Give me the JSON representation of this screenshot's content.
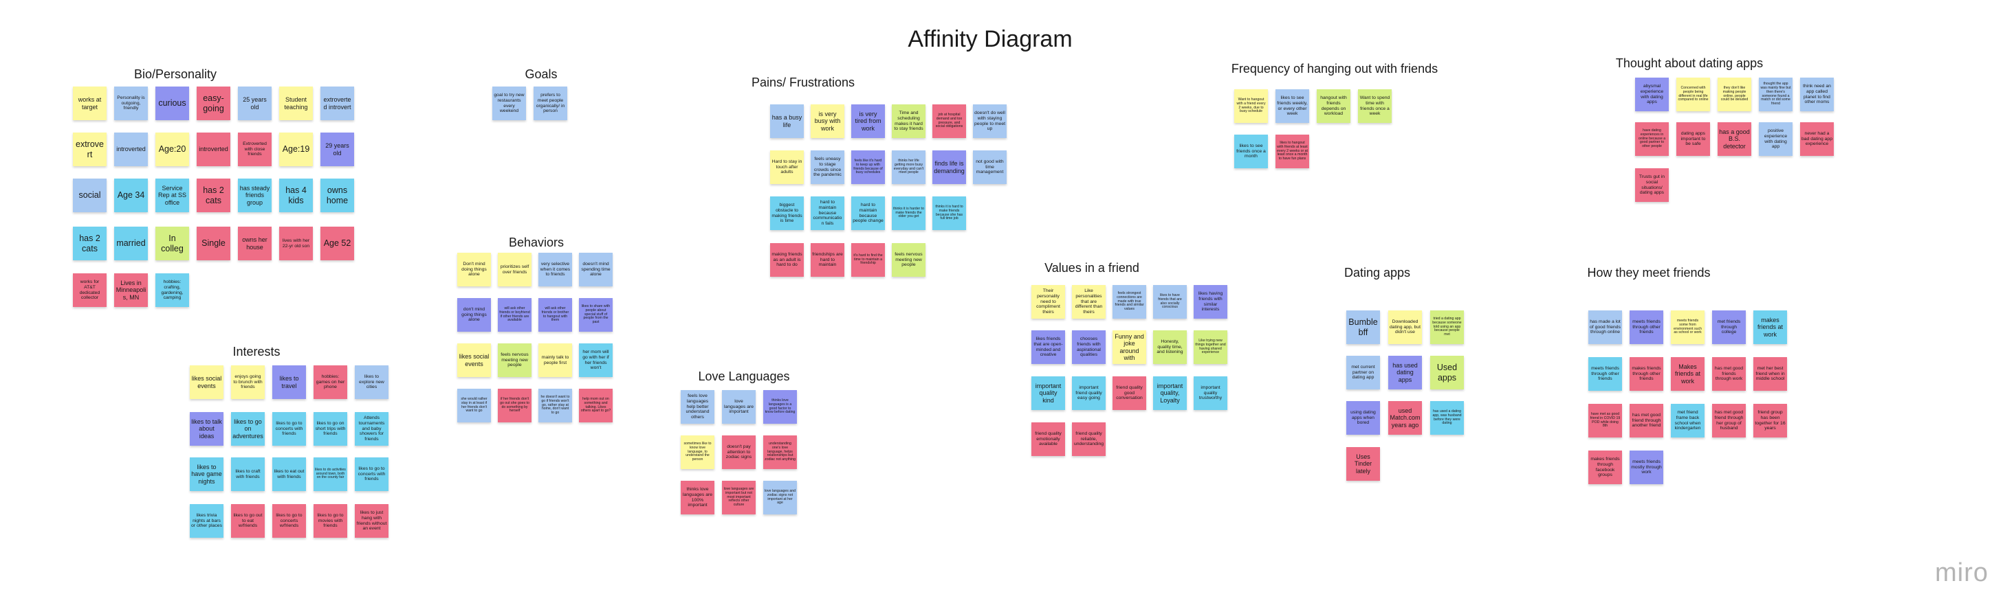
{
  "title": "Affinity Diagram",
  "logo": "miro",
  "colors": {
    "yellow": "#fdf89d",
    "blue": "#a7c8f1",
    "light_blue": "#6fd1ef",
    "violet": "#8f93f0",
    "red": "#ee6d86",
    "green": "#d4ef83"
  },
  "clusters": [
    {
      "id": "bio",
      "title": "Bio/Personality",
      "notes": [
        {
          "t": "works at target",
          "c": "y"
        },
        {
          "t": "Personality is outgoing, friendly",
          "c": "b"
        },
        {
          "t": "curious",
          "c": "v"
        },
        {
          "t": "easy-going",
          "c": "r"
        },
        {
          "t": "25 years old",
          "c": "b"
        },
        {
          "t": "Student teaching",
          "c": "y"
        },
        {
          "t": "extroverted introvert",
          "c": "b"
        },
        {
          "t": "extrovert",
          "c": "y"
        },
        {
          "t": "introverted",
          "c": "b"
        },
        {
          "t": "Age:20",
          "c": "y"
        },
        {
          "t": "introverted",
          "c": "r"
        },
        {
          "t": "Extroverted with close friends",
          "c": "r"
        },
        {
          "t": "Age:19",
          "c": "y"
        },
        {
          "t": "29 years old",
          "c": "v"
        },
        {
          "t": "social",
          "c": "b"
        },
        {
          "t": "Age 34",
          "c": "lb"
        },
        {
          "t": "Service Rep at SS office",
          "c": "lb"
        },
        {
          "t": "has 2 cats",
          "c": "r"
        },
        {
          "t": "has steady friends group",
          "c": "lb"
        },
        {
          "t": "has 4 kids",
          "c": "lb"
        },
        {
          "t": "owns home",
          "c": "lb"
        },
        {
          "t": "has 2 cats",
          "c": "lb"
        },
        {
          "t": "married",
          "c": "lb"
        },
        {
          "t": "In colleg",
          "c": "g"
        },
        {
          "t": "Single",
          "c": "r"
        },
        {
          "t": "owns her house",
          "c": "r"
        },
        {
          "t": "lives with her 22-yr old son",
          "c": "r"
        },
        {
          "t": "Age 52",
          "c": "r"
        },
        {
          "t": "works for AT&T dedicated collector",
          "c": "r"
        },
        {
          "t": "Lives in Minneapolis, MN",
          "c": "r"
        },
        {
          "t": "hobbies: crafting, gardening, camping",
          "c": "lb"
        }
      ]
    },
    {
      "id": "goals",
      "title": "Goals",
      "notes": [
        {
          "t": "goal to try new restaurants every weekend",
          "c": "b"
        },
        {
          "t": "prefers to meet people organically/ in person",
          "c": "b"
        }
      ]
    },
    {
      "id": "interests",
      "title": "Interests",
      "notes": [
        {
          "t": "likes social events",
          "c": "y"
        },
        {
          "t": "enjoys going to brunch with friends",
          "c": "y"
        },
        {
          "t": "likes to travel",
          "c": "v"
        },
        {
          "t": "hobbies: games on her phone",
          "c": "r"
        },
        {
          "t": "likes to explore new cities",
          "c": "b"
        },
        {
          "t": "likes to talk about ideas",
          "c": "v"
        },
        {
          "t": "likes to go on adventures",
          "c": "lb"
        },
        {
          "t": "likes to go to concerts with friends",
          "c": "lb"
        },
        {
          "t": "likes to go on short trips with friends",
          "c": "lb"
        },
        {
          "t": "Attends tournaments and baby showers for friends",
          "c": "lb"
        },
        {
          "t": "likes to have game nights",
          "c": "lb"
        },
        {
          "t": "likes to craft with friends",
          "c": "lb"
        },
        {
          "t": "likes to eat out with friends",
          "c": "lb"
        },
        {
          "t": "likes to do activities around town, both on the county fair",
          "c": "lb"
        },
        {
          "t": "likes to go to concerts with friends",
          "c": "lb"
        },
        {
          "t": "likes trivia nights at bars or other places",
          "c": "lb"
        },
        {
          "t": "likes to go out to eat w/friends",
          "c": "r"
        },
        {
          "t": "likes to go to concerts w/friends",
          "c": "r"
        },
        {
          "t": "likes to go to movies with friends",
          "c": "r"
        },
        {
          "t": "likes to just hang with friends without an event",
          "c": "r"
        }
      ]
    },
    {
      "id": "behaviors",
      "title": "Behaviors",
      "notes": [
        {
          "t": "Don't mind doing things alone",
          "c": "y"
        },
        {
          "t": "prioritizes self over friends",
          "c": "y"
        },
        {
          "t": "very selective when it comes to friends",
          "c": "b"
        },
        {
          "t": "doesn't mind spending time alone",
          "c": "b"
        },
        {
          "t": "don't mind going things alone",
          "c": "v"
        },
        {
          "t": "will ask other friends or boyfriend if other friends are available",
          "c": "v"
        },
        {
          "t": "will ask other friends or brother to hangout with them",
          "c": "v"
        },
        {
          "t": "likes to share with people about special stuff of people from the past",
          "c": "v"
        },
        {
          "t": "likes social events",
          "c": "y"
        },
        {
          "t": "feels nervous meeting new people",
          "c": "g"
        },
        {
          "t": "mainly talk to people first",
          "c": "y"
        },
        {
          "t": "her mom will go with her if her friends won't",
          "c": "lb"
        },
        {
          "t": "she would rather stay in at least if her friends don't want to go",
          "c": "b"
        },
        {
          "t": "if her friends don't go out she goes to do something by herself",
          "c": "r"
        },
        {
          "t": "he doesn't want to go if friends won't go, rather stay at home, don't want to go",
          "c": "b"
        },
        {
          "t": "help mom out on something and talking. Likes others apart to go?",
          "c": "r"
        }
      ]
    },
    {
      "id": "pains",
      "title": "Pains/ Frustrations",
      "notes": [
        {
          "t": "has a busy life",
          "c": "b"
        },
        {
          "t": "is very busy with work",
          "c": "y"
        },
        {
          "t": "is very tired from work",
          "c": "v"
        },
        {
          "t": "Time and scheduling makes it hard to stay friends",
          "c": "g"
        },
        {
          "t": "job at hospital demand and too pressure, and social obligations",
          "c": "r"
        },
        {
          "t": "doesn't do well with staying people to meet up",
          "c": "b"
        },
        {
          "t": "Hard to stay in touch after adults",
          "c": "y"
        },
        {
          "t": "feels uneasy to stage crowds since the pandemic",
          "c": "b"
        },
        {
          "t": "feels like it's hard to keep up with friends because of busy schedules",
          "c": "v"
        },
        {
          "t": "thinks her life getting more busy everyday and can't meet people",
          "c": "b"
        },
        {
          "t": "finds life is demanding",
          "c": "v"
        },
        {
          "t": "not good with time management",
          "c": "b"
        },
        {
          "t": "biggest obstacle to making friends is time",
          "c": "lb"
        },
        {
          "t": "hard to maintain because communication fails",
          "c": "lb"
        },
        {
          "t": "hard to maintain because people change",
          "c": "lb"
        },
        {
          "t": "thinks it is harder to make friends the older you get",
          "c": "lb"
        },
        {
          "t": "thinks it is hard to make friends because she has full time job",
          "c": "lb"
        },
        {
          "t": "making friends as an adult is hard to do",
          "c": "r"
        },
        {
          "t": "friendships are hard to maintain",
          "c": "r"
        },
        {
          "t": "it's hard to find the time to maintain a friendship",
          "c": "r"
        },
        {
          "t": "feels nervous meeting new people",
          "c": "g"
        }
      ]
    },
    {
      "id": "love",
      "title": "Love Languages",
      "notes": [
        {
          "t": "feels love languages help better understand others",
          "c": "b"
        },
        {
          "t": "love languages are important",
          "c": "b"
        },
        {
          "t": "thinks love languages is a good factor to know before dating",
          "c": "v"
        },
        {
          "t": "sometimes like to know love language, to understand the person",
          "c": "y"
        },
        {
          "t": "doesn't pay attention to zodiac signs",
          "c": "r"
        },
        {
          "t": "understanding one's love language, helps relationships but zodiac not anything",
          "c": "r"
        },
        {
          "t": "thinks love languages are 100% important",
          "c": "r"
        },
        {
          "t": "love languages are important but not most important reflects other culture",
          "c": "r"
        },
        {
          "t": "love languages and zodiac signs not important at her age",
          "c": "b"
        }
      ]
    },
    {
      "id": "values",
      "title": "Values in a friend",
      "notes": [
        {
          "t": "Their personality need to compliment theirs",
          "c": "y"
        },
        {
          "t": "Like personalities that are different than theirs",
          "c": "y"
        },
        {
          "t": "feels strongest connections are made with true friends and similar values",
          "c": "b"
        },
        {
          "t": "likes to have friends that are also socially conscious",
          "c": "b"
        },
        {
          "t": "likes having friends with similar interests",
          "c": "v"
        },
        {
          "t": "likes friends that are open-minded and creative",
          "c": "v"
        },
        {
          "t": "chooses friends with aspirational qualities",
          "c": "v"
        },
        {
          "t": "Funny and joke around with",
          "c": "y"
        },
        {
          "t": "Honesty, quality time, and listening",
          "c": "g"
        },
        {
          "t": "Like trying new things together and having shared experience",
          "c": "g"
        },
        {
          "t": "important quality kind",
          "c": "lb"
        },
        {
          "t": "important friend quality easy going",
          "c": "lb"
        },
        {
          "t": "friend quality good conversation",
          "c": "r"
        },
        {
          "t": "important quality, Loyalty",
          "c": "lb"
        },
        {
          "t": "important quality trustworthy",
          "c": "lb"
        },
        {
          "t": "friend quality emotionally available",
          "c": "r"
        },
        {
          "t": "friend quality reliable, understanding",
          "c": "r"
        }
      ]
    },
    {
      "id": "freq",
      "title": "Frequency of hanging out with friends",
      "notes": [
        {
          "t": "Want to hangout with a friend every 2 weeks, due to busy schedule",
          "c": "y"
        },
        {
          "t": "likes to see friends weekly, or every other week",
          "c": "b"
        },
        {
          "t": "hangout with friends depends on workload",
          "c": "g"
        },
        {
          "t": "Want to spend time with friends once a week",
          "c": "g"
        },
        {
          "t": "likes to see friends once a month",
          "c": "lb"
        },
        {
          "t": "likes to hangout with friends at least every 2 weeks or at least once a month to have fun plans",
          "c": "r"
        }
      ]
    },
    {
      "id": "datingapps",
      "title": "Dating apps",
      "notes": [
        {
          "t": "Bumble bff",
          "c": "b"
        },
        {
          "t": "Downloaded dating app, but didn't use",
          "c": "y"
        },
        {
          "t": "tried a dating app because someone told using an app because people met",
          "c": "g"
        },
        {
          "t": "met current partner on dating app",
          "c": "b"
        },
        {
          "t": "has used dating apps",
          "c": "v"
        },
        {
          "t": "Used apps",
          "c": "g"
        },
        {
          "t": "using dating apps when bored",
          "c": "v"
        },
        {
          "t": "used Match.com years ago",
          "c": "r"
        },
        {
          "t": "has used a dating app, was husband before they were dating",
          "c": "lb"
        },
        {
          "t": "Uses Tinder lately",
          "c": "r"
        }
      ]
    },
    {
      "id": "thought",
      "title": "Thought about dating apps",
      "notes": [
        {
          "t": "abysmal experience with dating apps",
          "c": "v"
        },
        {
          "t": "Concerned with people being different in real life compared to online",
          "c": "y"
        },
        {
          "t": "they don't like making people online, people could be deluded",
          "c": "y"
        },
        {
          "t": "thought the app was mainly fine but then there's someone found a match or did some friend",
          "c": "b"
        },
        {
          "t": "think need an app called planet to find other moms",
          "c": "b"
        },
        {
          "t": "have dating experiences in online because a good partner to other people",
          "c": "r"
        },
        {
          "t": "dating apps important to be safe",
          "c": "r"
        },
        {
          "t": "has a good B.S. detector",
          "c": "r"
        },
        {
          "t": "positive experience with dating app",
          "c": "b"
        },
        {
          "t": "never had a bad dating app experience",
          "c": "r"
        },
        {
          "t": "Trusts gut in social situations/ dating apps",
          "c": "r"
        }
      ]
    },
    {
      "id": "meet",
      "title": "How they meet friends",
      "notes": [
        {
          "t": "has made a lot of good friends through online",
          "c": "b"
        },
        {
          "t": "meets friends through other friends",
          "c": "v"
        },
        {
          "t": "meets friends some from environment such as school or work",
          "c": "y"
        },
        {
          "t": "met friends through college",
          "c": "v"
        },
        {
          "t": "makes friends at work",
          "c": "lb"
        },
        {
          "t": "meets friends through other friends",
          "c": "lb"
        },
        {
          "t": "makes friends through other friends",
          "c": "r"
        },
        {
          "t": "Makes friends at work",
          "c": "r"
        },
        {
          "t": "has met good friends through work",
          "c": "r"
        },
        {
          "t": "met her best friend when in middle school",
          "c": "r"
        },
        {
          "t": "have met as good friend in COVID 19 POD while doing 8th",
          "c": "r"
        },
        {
          "t": "has met good friend through another friend",
          "c": "r"
        },
        {
          "t": "met friend frame back school when kindergarten",
          "c": "lb"
        },
        {
          "t": "has met good friend through her group of husband",
          "c": "r"
        },
        {
          "t": "friend group has been together for 16 years",
          "c": "r"
        },
        {
          "t": "makes friends through facebook groups",
          "c": "r"
        },
        {
          "t": "meets friends mostly through work",
          "c": "v"
        }
      ]
    }
  ]
}
